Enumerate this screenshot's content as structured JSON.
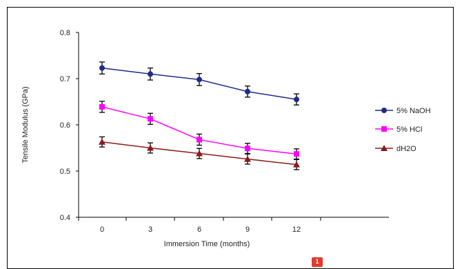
{
  "chart_data": {
    "type": "line",
    "title": "",
    "xlabel": "Immersion Time (months)",
    "ylabel": "Tensile Modulus (GPa)",
    "categories": [
      "0",
      "3",
      "6",
      "9",
      "12"
    ],
    "x": [
      0,
      3,
      6,
      9,
      12
    ],
    "ylim": [
      0.4,
      0.8
    ],
    "yticks": [
      "0.4",
      "0.5",
      "0.6",
      "0.7",
      "0.8"
    ],
    "grid": false,
    "legend_position": "right",
    "series": [
      {
        "name": "5% NaOH",
        "color": "#1f2a8a",
        "marker": "circle",
        "values": [
          0.723,
          0.71,
          0.698,
          0.672,
          0.655
        ],
        "errors": [
          0.013,
          0.013,
          0.013,
          0.012,
          0.012
        ]
      },
      {
        "name": "5% HCl",
        "color": "#ff00ff",
        "marker": "square",
        "values": [
          0.639,
          0.613,
          0.568,
          0.549,
          0.537
        ],
        "errors": [
          0.012,
          0.012,
          0.012,
          0.011,
          0.011
        ]
      },
      {
        "name": "dH2O",
        "color": "#8b1a1a",
        "marker": "triangle",
        "values": [
          0.563,
          0.55,
          0.538,
          0.526,
          0.514
        ],
        "errors": [
          0.011,
          0.011,
          0.011,
          0.011,
          0.011
        ]
      }
    ]
  },
  "page_badge": "1"
}
